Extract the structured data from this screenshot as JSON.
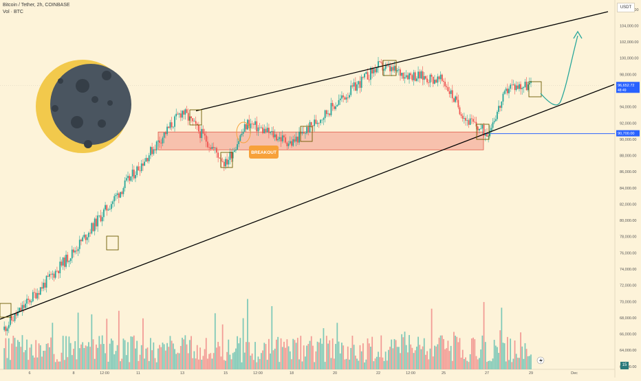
{
  "header": {
    "title": "Bitcoin / Tether, 2h, COINBASE",
    "volume_label": "Vol · BTC",
    "currency": "USDT"
  },
  "chart_data": {
    "type": "candlestick",
    "ylim": [
      60800,
      107000
    ],
    "y_ticks": [
      "62,000.00",
      "64,000.00",
      "66,000.00",
      "68,000.00",
      "70,000.00",
      "72,000.00",
      "74,000.00",
      "76,000.00",
      "78,000.00",
      "80,000.00",
      "82,000.00",
      "84,000.00",
      "86,000.00",
      "88,000.00",
      "90,000.00",
      "92,000.00",
      "94,000.00",
      "96,000.00",
      "98,000.00",
      "100,000.00",
      "102,000.00",
      "104,000.00",
      "106,000.00"
    ],
    "x_ticks": [
      "6",
      "8",
      "12:00",
      "11",
      "13",
      "15",
      "12:00",
      "18",
      "20",
      "22",
      "12:00",
      "25",
      "27",
      "29",
      "Dec"
    ],
    "price_markers": [
      {
        "value": 96652.72,
        "label": "96,652.72",
        "sublabel": "48:49",
        "color": "#2962ff"
      },
      {
        "value": 90700,
        "label": "90,700.00",
        "color": "#2962ff"
      }
    ],
    "key_points": [
      {
        "x": "5",
        "y": 66500
      },
      {
        "x": "8",
        "y": 76200
      },
      {
        "x": "13",
        "y": 93500
      },
      {
        "x": "15",
        "y": 87000
      },
      {
        "x": "16",
        "y": 92000
      },
      {
        "x": "18",
        "y": 89500
      },
      {
        "x": "22",
        "y": 99000
      },
      {
        "x": "23",
        "y": 98200
      },
      {
        "x": "25",
        "y": 97200
      },
      {
        "x": "26",
        "y": 92500
      },
      {
        "x": "27",
        "y": 90700
      },
      {
        "x": "28",
        "y": 96500
      },
      {
        "x": "29",
        "y": 96650
      }
    ],
    "annotations": {
      "breakout_label": "BREAKOUT",
      "zone": {
        "low": 88700,
        "high": 90900
      },
      "upper_trendline": [
        {
          "x": "13",
          "y": 93500
        },
        {
          "x": "Dec",
          "y": 106500
        }
      ],
      "lower_trendline": [
        {
          "x": "5",
          "y": 66500
        },
        {
          "x": "Dec",
          "y": 96700
        }
      ],
      "projection": [
        {
          "x": "29",
          "y": 96650
        },
        {
          "x": "30",
          "y": 94500
        },
        {
          "x": "Dec",
          "y": 104500
        }
      ]
    },
    "grid": false,
    "legend": "top-left"
  },
  "status_badge": "15",
  "colors": {
    "up": "#26a69a",
    "down": "#ef5350",
    "vol_up": "#7fc9b8",
    "vol_down": "#f29b95",
    "zone_fill": "#f4a090",
    "zone_border": "#e05a4a",
    "breakout": "#f7a13a",
    "marker": "#2962ff",
    "trendline": "#000000",
    "projection": "#26a69a",
    "moon_dark": "#4a5560",
    "moon_lit": "#f2c94c"
  }
}
